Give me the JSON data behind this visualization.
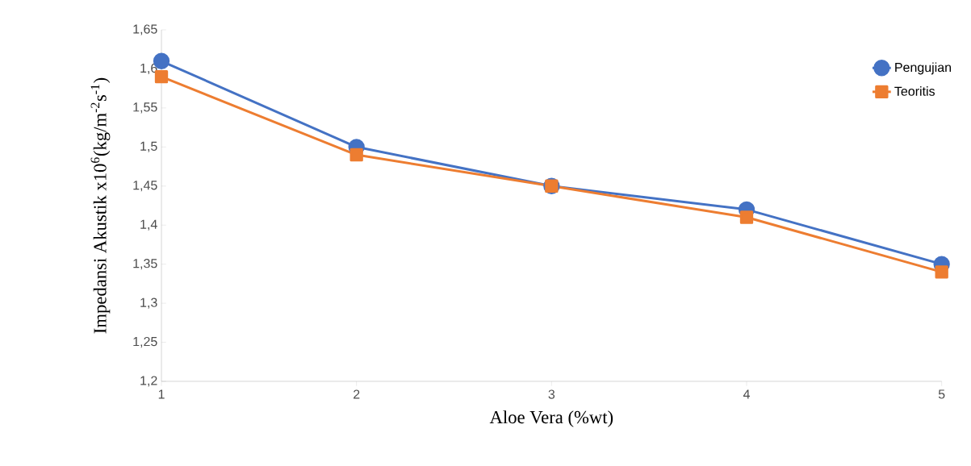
{
  "chart_data": {
    "type": "line",
    "xlabel": "Aloe Vera (%wt)",
    "ylabel": "Impedansi Akustik x10$^{6}$(kg/m$^{-2}$s$^{-1}$)",
    "x": [
      1,
      2,
      3,
      4,
      5
    ],
    "series": [
      {
        "name": "Pengujian",
        "color": "#4472c4",
        "marker": "circle",
        "values": [
          1.61,
          1.5,
          1.45,
          1.42,
          1.35
        ]
      },
      {
        "name": "Teoritis",
        "color": "#ed7d31",
        "marker": "square",
        "values": [
          1.59,
          1.49,
          1.45,
          1.41,
          1.34
        ]
      }
    ],
    "xlim": [
      1,
      5
    ],
    "xticks": [
      1,
      2,
      3,
      4,
      5
    ],
    "ylim": [
      1.2,
      1.65
    ],
    "yticks": [
      {
        "value": 1.2,
        "label": "1,2"
      },
      {
        "value": 1.25,
        "label": "1,25"
      },
      {
        "value": 1.3,
        "label": "1,3"
      },
      {
        "value": 1.35,
        "label": "1,35"
      },
      {
        "value": 1.4,
        "label": "1,4"
      },
      {
        "value": 1.45,
        "label": "1,45"
      },
      {
        "value": 1.5,
        "label": "1,5"
      },
      {
        "value": 1.55,
        "label": "1,55"
      },
      {
        "value": 1.6,
        "label": "1,6"
      },
      {
        "value": 1.65,
        "label": "1,65"
      }
    ],
    "legend": "top right",
    "line_style": "solid"
  }
}
